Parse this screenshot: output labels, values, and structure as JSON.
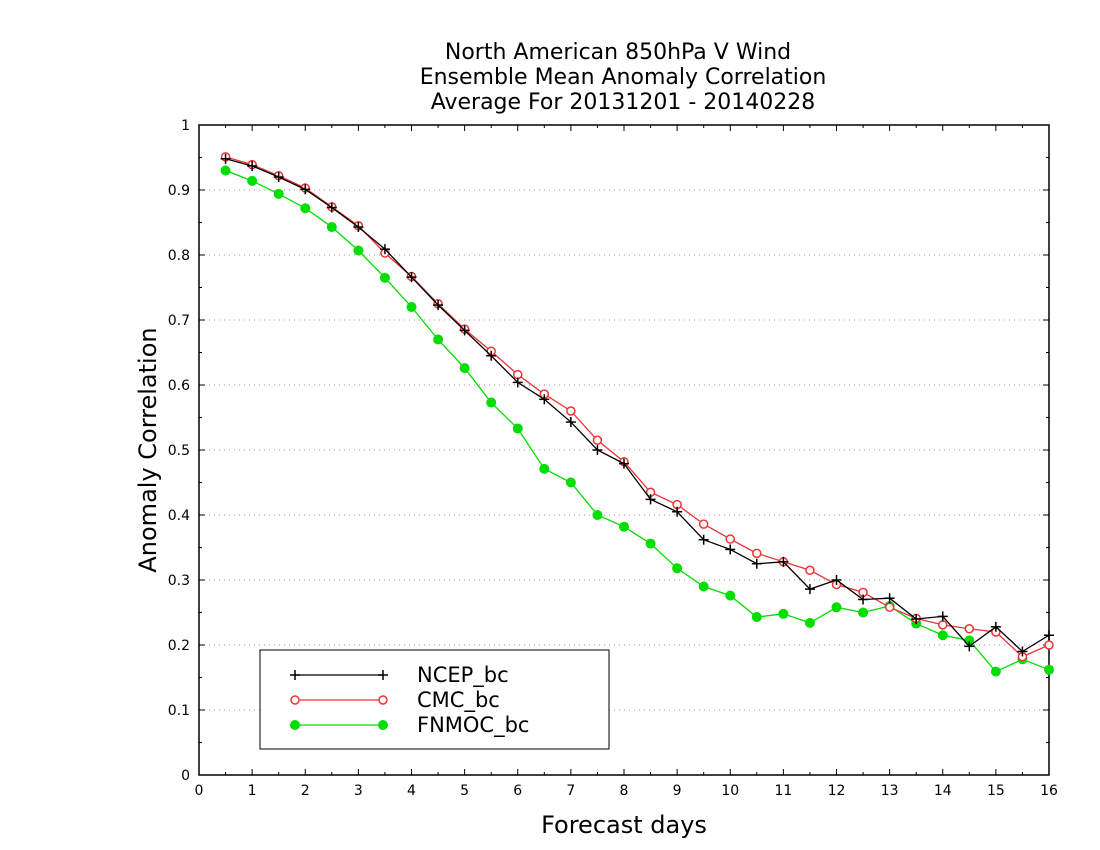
{
  "chart_data": {
    "type": "line",
    "title_lines": [
      "North American 850hPa V Wind",
      "Ensemble Mean Anomaly Correlation",
      "Average For 20131201 - 20140228"
    ],
    "xlabel": "Forecast days",
    "ylabel": "Anomaly Correlation",
    "xlim": [
      0,
      16
    ],
    "ylim": [
      0,
      1
    ],
    "xticks": [
      "0",
      "1",
      "2",
      "3",
      "4",
      "5",
      "6",
      "7",
      "8",
      "9",
      "10",
      "11",
      "12",
      "13",
      "14",
      "15",
      "16"
    ],
    "yticks": [
      "0",
      "0.1",
      "0.2",
      "0.3",
      "0.4",
      "0.5",
      "0.6",
      "0.7",
      "0.8",
      "0.9",
      "1"
    ],
    "grid": "horizontal-dotted",
    "legend_position": "bottom-left",
    "x": [
      0.5,
      1,
      1.5,
      2,
      2.5,
      3,
      3.5,
      4,
      4.5,
      5,
      5.5,
      6,
      6.5,
      7,
      7.5,
      8,
      8.5,
      9,
      9.5,
      10,
      10.5,
      11,
      11.5,
      12,
      12.5,
      13,
      13.5,
      14,
      14.5,
      15,
      15.5,
      16
    ],
    "series": [
      {
        "name": "NCEP_bc",
        "color": "#000000",
        "marker": "plus",
        "values": [
          0.948,
          0.937,
          0.92,
          0.901,
          0.873,
          0.843,
          0.809,
          0.766,
          0.723,
          0.684,
          0.645,
          0.604,
          0.578,
          0.543,
          0.5,
          0.479,
          0.424,
          0.405,
          0.362,
          0.347,
          0.325,
          0.328,
          0.286,
          0.3,
          0.27,
          0.272,
          0.24,
          0.244,
          0.198,
          0.228,
          0.19,
          0.215
        ]
      },
      {
        "name": "CMC_bc",
        "color": "#ee3333",
        "marker": "open-circle",
        "values": [
          0.951,
          0.939,
          0.922,
          0.903,
          0.874,
          0.845,
          0.803,
          0.767,
          0.725,
          0.686,
          0.652,
          0.616,
          0.586,
          0.56,
          0.515,
          0.482,
          0.435,
          0.416,
          0.386,
          0.363,
          0.341,
          0.328,
          0.315,
          0.293,
          0.281,
          0.258,
          0.241,
          0.231,
          0.225,
          0.22,
          0.182,
          0.2
        ]
      },
      {
        "name": "FNMOC_bc",
        "color": "#00dd00",
        "marker": "filled-circle",
        "values": [
          0.93,
          0.914,
          0.894,
          0.872,
          0.843,
          0.807,
          0.765,
          0.72,
          0.67,
          0.626,
          0.573,
          0.533,
          0.471,
          0.45,
          0.4,
          0.382,
          0.356,
          0.318,
          0.29,
          0.276,
          0.243,
          0.248,
          0.234,
          0.258,
          0.25,
          0.26,
          0.233,
          0.215,
          0.207,
          0.159,
          0.178,
          0.162
        ]
      }
    ]
  }
}
